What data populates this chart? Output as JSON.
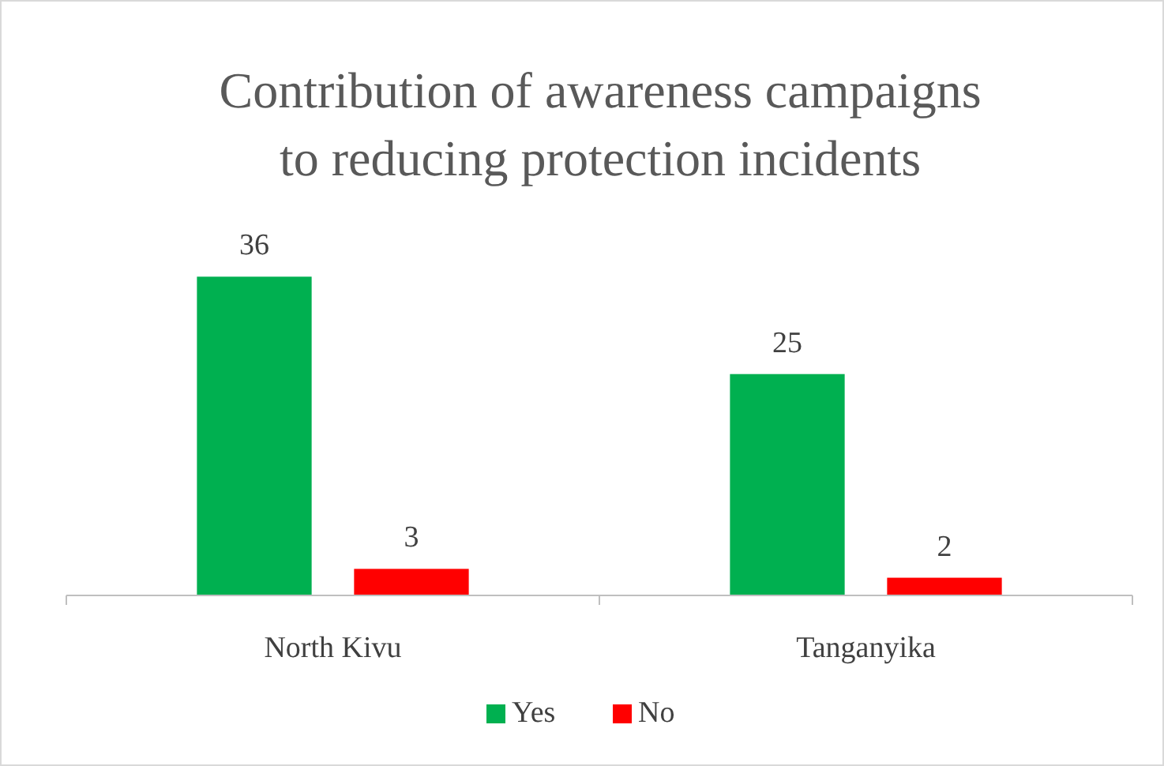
{
  "chart_data": {
    "type": "bar",
    "title": "Contribution of  awareness campaigns\nto reducing protection incidents",
    "categories": [
      "North Kivu",
      "Tanganyika"
    ],
    "series": [
      {
        "name": "Yes",
        "color": "#00b050",
        "values": [
          36,
          25
        ]
      },
      {
        "name": "No",
        "color": "#ff0000",
        "values": [
          3,
          2
        ]
      }
    ],
    "data_labels": true,
    "legend": "bottom",
    "grid": false
  }
}
